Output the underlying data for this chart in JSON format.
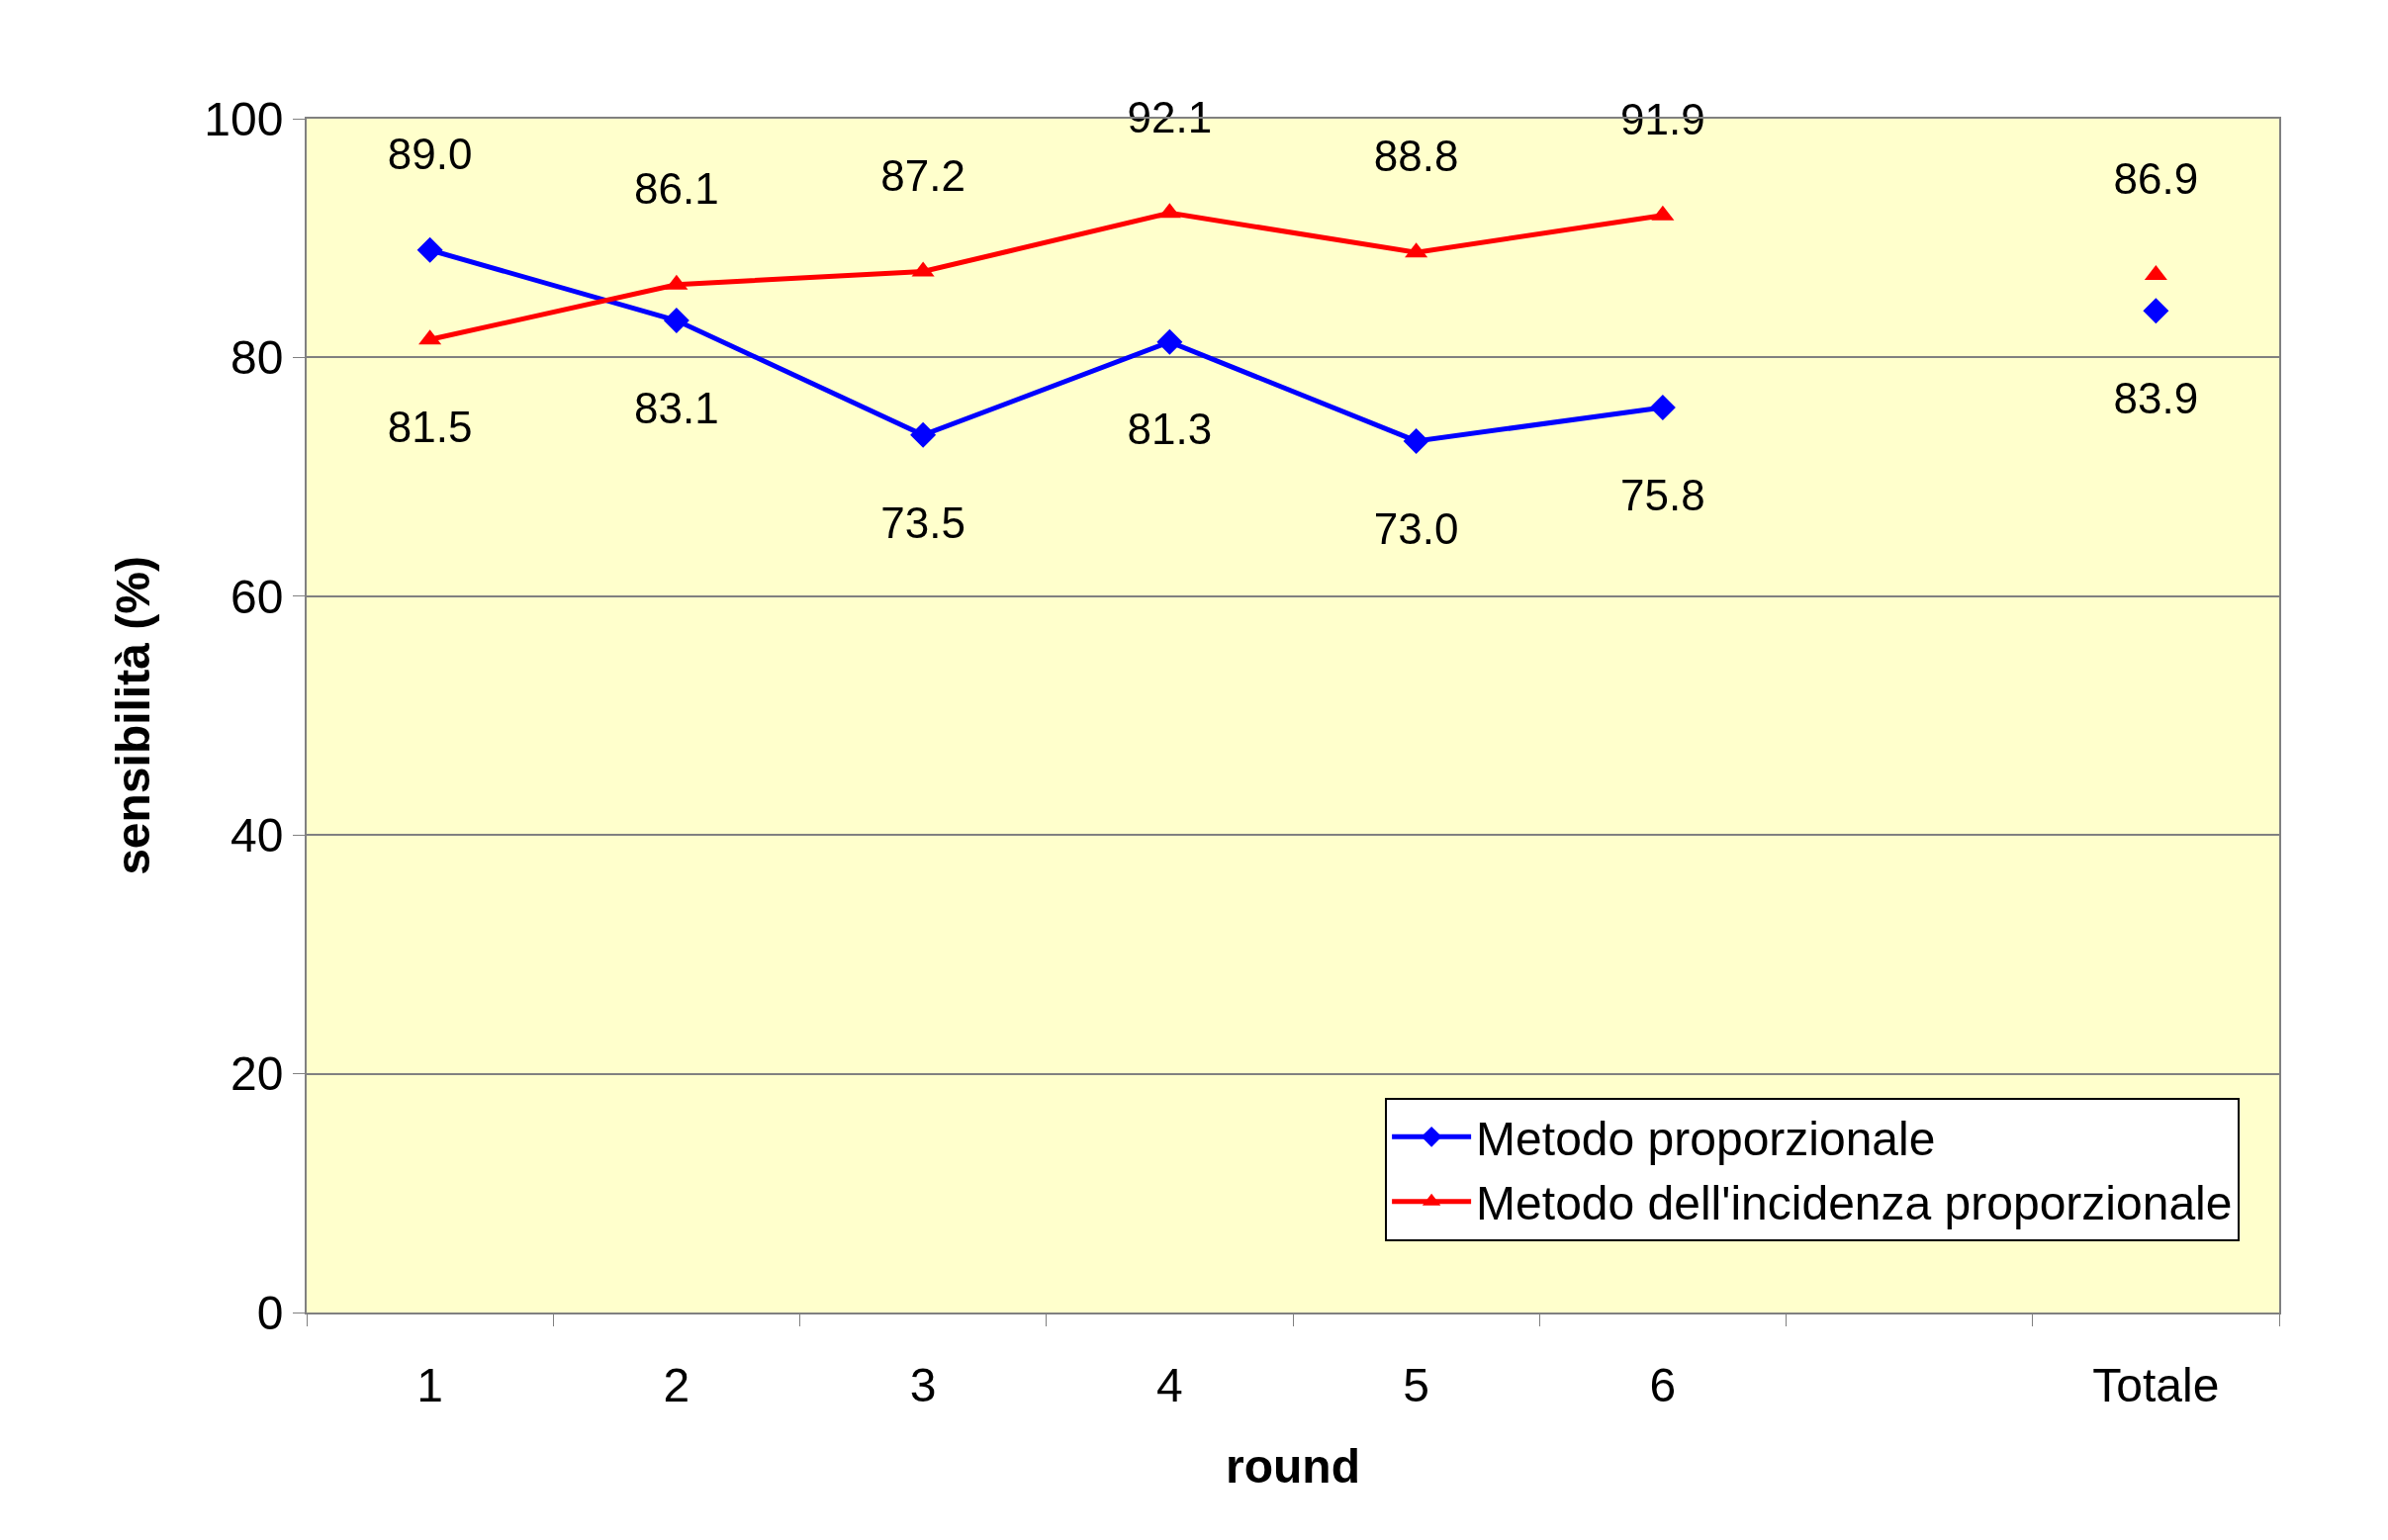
{
  "chart_data": {
    "type": "line",
    "xlabel": "round",
    "ylabel": "sensibilità (%)",
    "categories": [
      "1",
      "2",
      "3",
      "4",
      "5",
      "6",
      null,
      "Totale"
    ],
    "series": [
      {
        "name": "Metodo proporzionale",
        "color": "#0000ff",
        "marker": "diamond",
        "values": [
          89.0,
          83.1,
          73.5,
          81.3,
          73.0,
          75.8,
          null,
          83.9
        ],
        "value_labels": [
          "89.0",
          "83.1",
          "73.5",
          "81.3",
          "73.0",
          "75.8",
          null,
          "83.9"
        ]
      },
      {
        "name": "Metodo dell'incidenza proporzionale",
        "color": "#ff0000",
        "marker": "triangle",
        "values": [
          81.5,
          86.1,
          87.2,
          92.1,
          88.8,
          91.9,
          null,
          86.9
        ],
        "value_labels": [
          "81.5",
          "86.1",
          "87.2",
          "92.1",
          "88.8",
          "91.9",
          null,
          "86.9"
        ]
      }
    ],
    "ylim": [
      0,
      100
    ],
    "yticks": [
      0,
      20,
      40,
      60,
      80,
      100
    ],
    "grid": "y",
    "legend": "bottom right"
  }
}
